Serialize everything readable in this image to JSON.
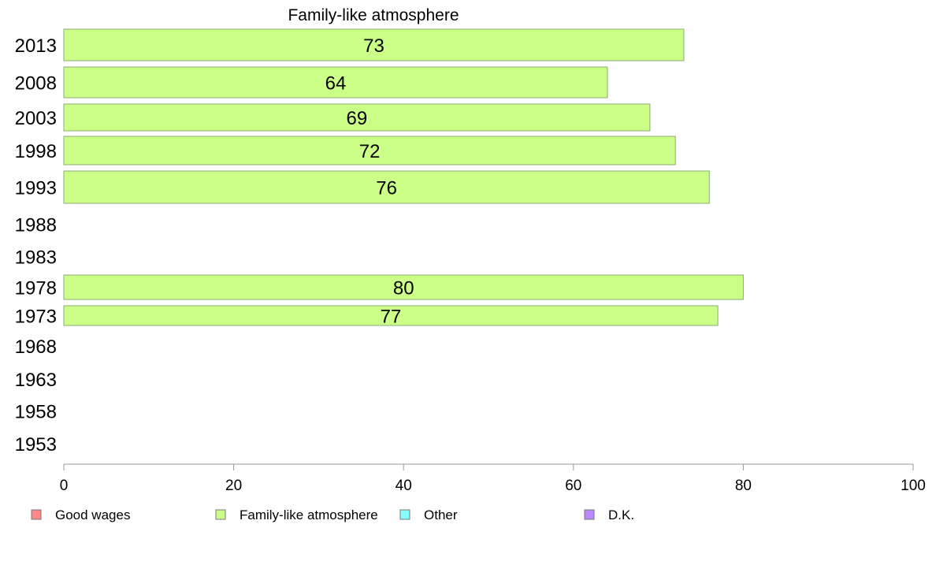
{
  "chart_data": {
    "type": "bar",
    "orientation": "horizontal",
    "title": "Family-like atmosphere",
    "categories": [
      "2013",
      "2008",
      "2003",
      "1998",
      "1993",
      "1988",
      "1983",
      "1978",
      "1973",
      "1968",
      "1963",
      "1958",
      "1953"
    ],
    "series": [
      {
        "name": "Family-like atmosphere",
        "color": "#ccff88",
        "values": [
          73,
          64,
          69,
          72,
          76,
          null,
          null,
          80,
          77,
          null,
          null,
          null,
          null
        ]
      }
    ],
    "xlim": [
      0,
      100
    ],
    "xticks": [
      0,
      20,
      40,
      60,
      80,
      100
    ],
    "grid": false,
    "legend_position": "bottom",
    "legend": [
      {
        "label": "Good wages",
        "color": "#ff8888"
      },
      {
        "label": "Family-like atmosphere",
        "color": "#ccff88"
      },
      {
        "label": "Other",
        "color": "#88ffff"
      },
      {
        "label": "D.K.",
        "color": "#bb88ff"
      }
    ]
  }
}
